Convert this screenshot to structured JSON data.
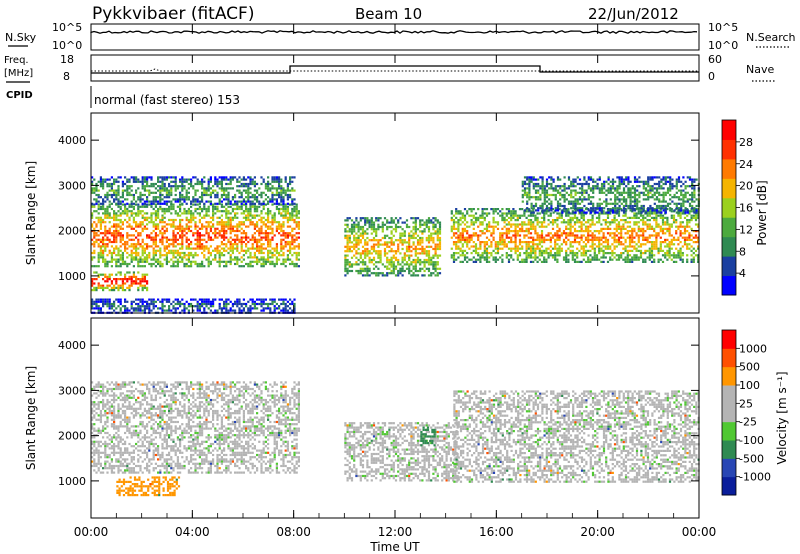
{
  "header": {
    "station": "Pykkvibaer (fitACF)",
    "beam": "Beam 10",
    "date": "22/Jun/2012"
  },
  "noise_panel": {
    "left_label": "N.Sky",
    "left_ticks": [
      "10^5",
      "10^0"
    ],
    "right_ticks": [
      "10^5",
      "10^0"
    ],
    "right_label": "N.Search"
  },
  "freq_panel": {
    "left_label_line1": "Freq.",
    "left_label_line2": "[MHz]",
    "left_ticks": [
      "18",
      "8"
    ],
    "right_ticks": [
      "60",
      "0"
    ],
    "right_label": "Nave",
    "cpid_label": "CPID",
    "cpid_mode": "normal (fast stereo) 153"
  },
  "colors": {
    "power_scale": [
      "#0000ff",
      "#1a3fa0",
      "#2f8a52",
      "#4caa3e",
      "#9bd01e",
      "#f5b400",
      "#ff7a00",
      "#ff3000",
      "#ff0000"
    ],
    "velocity_scale": [
      "#ff0000",
      "#ff5000",
      "#ff9600",
      "#b4b4b4",
      "#b4b4b4",
      "#50c832",
      "#2f8a52",
      "#2846b4",
      "#0a1e9b"
    ]
  },
  "chart_data": [
    {
      "type": "heatmap",
      "panel": "power",
      "xlabel": "Time UT",
      "ylabel": "Slant Range [km]",
      "x_ticks": [
        "00:00",
        "04:00",
        "08:00",
        "12:00",
        "16:00",
        "20:00",
        "00:00"
      ],
      "x_range_hours": [
        0,
        24
      ],
      "y_ticks": [
        1000,
        2000,
        3000,
        4000
      ],
      "ylim": [
        180,
        4600
      ],
      "colorbar_label": "Power [dB]",
      "colorbar_ticks": [
        4,
        8,
        12,
        16,
        20,
        24,
        28
      ],
      "colorbar_range": [
        0,
        32
      ],
      "echo_regions": [
        {
          "t_start": 0.0,
          "t_end": 8.2,
          "r_min": 1200,
          "r_max": 2600,
          "level": 22
        },
        {
          "t_start": 0.0,
          "t_end": 2.2,
          "r_min": 700,
          "r_max": 1100,
          "level": 26
        },
        {
          "t_start": 0.0,
          "t_end": 8.0,
          "r_min": 2600,
          "r_max": 3200,
          "level": 10
        },
        {
          "t_start": 10.0,
          "t_end": 13.8,
          "r_min": 1000,
          "r_max": 2300,
          "level": 18
        },
        {
          "t_start": 14.2,
          "t_end": 24.0,
          "r_min": 1300,
          "r_max": 2500,
          "level": 20
        },
        {
          "t_start": 17.0,
          "t_end": 24.0,
          "r_min": 2400,
          "r_max": 3200,
          "level": 10
        },
        {
          "t_start": 0.0,
          "t_end": 8.0,
          "r_min": 200,
          "r_max": 500,
          "level": 6
        }
      ]
    },
    {
      "type": "heatmap",
      "panel": "velocity",
      "xlabel": "Time UT",
      "ylabel": "Slant Range [km]",
      "x_ticks": [
        "00:00",
        "04:00",
        "08:00",
        "12:00",
        "16:00",
        "20:00",
        "00:00"
      ],
      "x_range_hours": [
        0,
        24
      ],
      "y_ticks": [
        1000,
        2000,
        3000,
        4000
      ],
      "ylim": [
        180,
        4600
      ],
      "colorbar_label": "Velocity [m s⁻¹]",
      "colorbar_ticks": [
        "1000",
        "500",
        "100",
        "25",
        "-25",
        "-100",
        "-500",
        "-1000"
      ],
      "echo_regions": [
        {
          "t_start": 0.0,
          "t_end": 8.2,
          "r_min": 1200,
          "r_max": 3200,
          "velocity": 0
        },
        {
          "t_start": 1.0,
          "t_end": 3.5,
          "r_min": 700,
          "r_max": 1100,
          "velocity": -300
        },
        {
          "t_start": 10.0,
          "t_end": 14.5,
          "r_min": 1000,
          "r_max": 2300,
          "velocity": 0
        },
        {
          "t_start": 13.0,
          "t_end": 13.6,
          "r_min": 1800,
          "r_max": 2200,
          "velocity": 150
        },
        {
          "t_start": 14.3,
          "t_end": 24.0,
          "r_min": 1000,
          "r_max": 3000,
          "velocity": 0
        }
      ]
    }
  ]
}
